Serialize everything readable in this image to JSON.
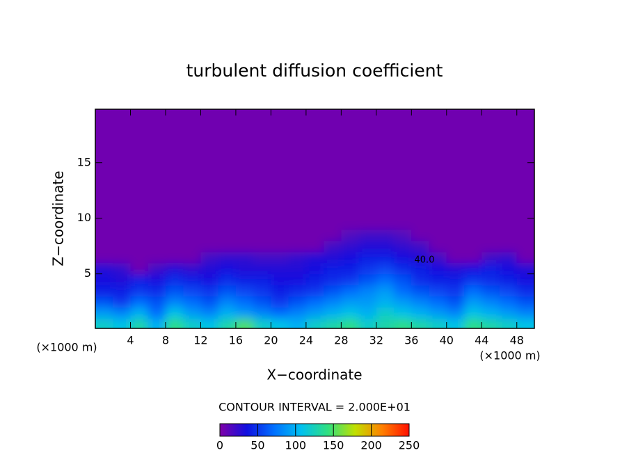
{
  "chart_data": {
    "type": "contour",
    "title": "turbulent diffusion coefficient",
    "x_label": "X−coordinate",
    "y_label": "Z−coordinate",
    "y_unit_label": "(×1000 m)",
    "x_unit_label": "(×1000 m)",
    "contour_interval_label": "CONTOUR INTERVAL = 2.000E+01",
    "contour_label": "40.0",
    "xlim": [
      0,
      50
    ],
    "ylim": [
      0.1,
      19.8
    ],
    "xticks": [
      4,
      8,
      12,
      16,
      20,
      24,
      28,
      32,
      36,
      40,
      44,
      48
    ],
    "yticks": [
      5,
      10,
      15
    ],
    "x_edges": [
      0,
      2,
      4,
      6,
      8,
      10,
      12,
      14,
      16,
      18,
      20,
      22,
      24,
      26,
      28,
      30,
      32,
      34,
      36,
      38,
      40,
      42,
      44,
      46,
      48,
      50
    ],
    "y_edges": [
      0.1,
      1,
      2,
      3,
      4,
      5,
      6,
      7,
      8,
      9,
      10,
      19.8
    ],
    "z": [
      [
        120,
        110,
        130,
        100,
        140,
        120,
        110,
        130,
        150,
        120,
        110,
        100,
        120,
        130,
        140,
        120,
        130,
        140,
        130,
        120,
        110,
        140,
        130,
        120,
        110
      ],
      [
        90,
        80,
        100,
        70,
        110,
        90,
        80,
        100,
        90,
        80,
        70,
        80,
        90,
        100,
        110,
        100,
        120,
        110,
        100,
        90,
        80,
        110,
        100,
        90,
        80
      ],
      [
        60,
        50,
        70,
        60,
        80,
        70,
        60,
        80,
        70,
        60,
        50,
        60,
        70,
        80,
        90,
        90,
        100,
        90,
        80,
        70,
        60,
        90,
        80,
        70,
        60
      ],
      [
        40,
        40,
        50,
        45,
        60,
        55,
        50,
        60,
        55,
        50,
        40,
        45,
        50,
        60,
        70,
        80,
        90,
        70,
        60,
        55,
        50,
        70,
        60,
        55,
        45
      ],
      [
        35,
        30,
        40,
        35,
        45,
        40,
        35,
        45,
        40,
        40,
        35,
        35,
        40,
        45,
        50,
        60,
        70,
        60,
        45,
        40,
        40,
        50,
        45,
        40,
        35
      ],
      [
        30,
        25,
        5,
        20,
        30,
        25,
        30,
        35,
        30,
        30,
        30,
        30,
        35,
        40,
        40,
        50,
        55,
        45,
        40,
        35,
        30,
        35,
        40,
        35,
        30
      ],
      [
        5,
        5,
        5,
        5,
        5,
        5,
        20,
        25,
        25,
        20,
        20,
        25,
        30,
        30,
        35,
        40,
        40,
        35,
        30,
        20,
        5,
        5,
        20,
        25,
        5
      ],
      [
        5,
        5,
        5,
        5,
        5,
        5,
        5,
        5,
        5,
        5,
        5,
        5,
        5,
        20,
        25,
        30,
        30,
        25,
        20,
        5,
        5,
        5,
        5,
        5,
        5
      ],
      [
        5,
        5,
        5,
        5,
        5,
        5,
        5,
        5,
        5,
        5,
        5,
        5,
        5,
        5,
        15,
        20,
        20,
        15,
        5,
        5,
        5,
        5,
        5,
        5,
        5
      ],
      [
        5,
        5,
        5,
        5,
        5,
        5,
        5,
        5,
        5,
        5,
        5,
        5,
        5,
        5,
        5,
        5,
        5,
        5,
        5,
        5,
        5,
        5,
        5,
        5,
        5
      ],
      [
        5,
        5,
        5,
        5,
        5,
        5,
        5,
        5,
        5,
        5,
        5,
        5,
        5,
        5,
        5,
        5,
        5,
        5,
        5,
        5,
        5,
        5,
        5,
        5,
        5
      ]
    ],
    "zlim": [
      0,
      250
    ],
    "colorbar_ticks": [
      0,
      50,
      100,
      150,
      200,
      250
    ],
    "colors": [
      "#8000a8",
      "#1010e0",
      "#0070ff",
      "#00c0f0",
      "#30e080",
      "#c0e000",
      "#ff8000",
      "#ff1000"
    ]
  }
}
